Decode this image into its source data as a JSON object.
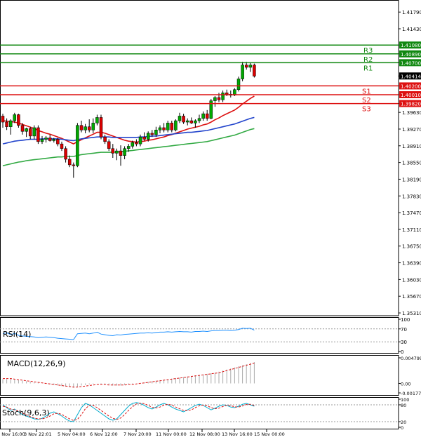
{
  "chart_data": {
    "type": "candlestick",
    "instrument_levels": {
      "resistance": [
        {
          "label": "R1",
          "value": 1.407,
          "price_tag": "1.40700"
        },
        {
          "label": "R2",
          "value": 1.4089,
          "price_tag": "1.40890"
        },
        {
          "label": "R3",
          "value": 1.4108,
          "price_tag": "1.41080"
        }
      ],
      "support": [
        {
          "label": "S1",
          "value": 1.402,
          "price_tag": "1.40200"
        },
        {
          "label": "S2",
          "value": 1.4001,
          "price_tag": "1.40010"
        },
        {
          "label": "S3",
          "value": 1.3982,
          "price_tag": "1.39820"
        }
      ],
      "current_price": {
        "value": 1.40414,
        "label": "1.40414"
      }
    },
    "price_axis": {
      "ylim": [
        1.3525,
        1.4205
      ],
      "ticks": [
        "1.41790",
        "1.41430",
        "1.41080",
        "1.40890",
        "1.40700",
        "1.40414",
        "1.40200",
        "1.40010",
        "1.39820",
        "1.39630",
        "1.39270",
        "1.38910",
        "1.38550",
        "1.38190",
        "1.37830",
        "1.37470",
        "1.37110",
        "1.36750",
        "1.36390",
        "1.36030",
        "1.35670",
        "1.35310"
      ]
    },
    "x_axis": {
      "tick_labels": [
        "1 Nov 16:00",
        "3 Nov 22:01",
        "5 Nov 04:00",
        "6 Nov 12:00",
        "7 Nov 20:00",
        "11 Nov 00:00",
        "12 Nov 08:00",
        "13 Nov 16:00",
        "15 Nov 00:00"
      ]
    },
    "candles": [
      {
        "o": 1.3955,
        "h": 1.396,
        "l": 1.393,
        "c": 1.3942
      },
      {
        "o": 1.3942,
        "h": 1.395,
        "l": 1.3925,
        "c": 1.3932
      },
      {
        "o": 1.3932,
        "h": 1.3948,
        "l": 1.3915,
        "c": 1.3945
      },
      {
        "o": 1.3945,
        "h": 1.3962,
        "l": 1.394,
        "c": 1.3958
      },
      {
        "o": 1.3958,
        "h": 1.396,
        "l": 1.393,
        "c": 1.3935
      },
      {
        "o": 1.3935,
        "h": 1.394,
        "l": 1.3915,
        "c": 1.3922
      },
      {
        "o": 1.3922,
        "h": 1.393,
        "l": 1.391,
        "c": 1.3928
      },
      {
        "o": 1.3928,
        "h": 1.3932,
        "l": 1.3905,
        "c": 1.3912
      },
      {
        "o": 1.3912,
        "h": 1.3935,
        "l": 1.3905,
        "c": 1.393
      },
      {
        "o": 1.393,
        "h": 1.3935,
        "l": 1.3895,
        "c": 1.39
      },
      {
        "o": 1.39,
        "h": 1.3912,
        "l": 1.3895,
        "c": 1.3905
      },
      {
        "o": 1.3905,
        "h": 1.3912,
        "l": 1.3898,
        "c": 1.3908
      },
      {
        "o": 1.3908,
        "h": 1.3915,
        "l": 1.39,
        "c": 1.3902
      },
      {
        "o": 1.3902,
        "h": 1.3908,
        "l": 1.3898,
        "c": 1.3905
      },
      {
        "o": 1.3905,
        "h": 1.3908,
        "l": 1.389,
        "c": 1.3895
      },
      {
        "o": 1.3895,
        "h": 1.39,
        "l": 1.388,
        "c": 1.3885
      },
      {
        "o": 1.3885,
        "h": 1.389,
        "l": 1.3855,
        "c": 1.3862
      },
      {
        "o": 1.3862,
        "h": 1.387,
        "l": 1.3845,
        "c": 1.385
      },
      {
        "o": 1.385,
        "h": 1.3855,
        "l": 1.3822,
        "c": 1.3848
      },
      {
        "o": 1.3848,
        "h": 1.394,
        "l": 1.3845,
        "c": 1.3935
      },
      {
        "o": 1.3935,
        "h": 1.3945,
        "l": 1.392,
        "c": 1.3925
      },
      {
        "o": 1.3925,
        "h": 1.3938,
        "l": 1.3918,
        "c": 1.3932
      },
      {
        "o": 1.3932,
        "h": 1.3948,
        "l": 1.392,
        "c": 1.3925
      },
      {
        "o": 1.3925,
        "h": 1.395,
        "l": 1.3918,
        "c": 1.394
      },
      {
        "o": 1.394,
        "h": 1.3958,
        "l": 1.3935,
        "c": 1.3952
      },
      {
        "o": 1.3952,
        "h": 1.3958,
        "l": 1.3905,
        "c": 1.391
      },
      {
        "o": 1.391,
        "h": 1.3915,
        "l": 1.3895,
        "c": 1.39
      },
      {
        "o": 1.39,
        "h": 1.3905,
        "l": 1.388,
        "c": 1.3885
      },
      {
        "o": 1.3885,
        "h": 1.3895,
        "l": 1.3865,
        "c": 1.3875
      },
      {
        "o": 1.3875,
        "h": 1.3885,
        "l": 1.386,
        "c": 1.388
      },
      {
        "o": 1.388,
        "h": 1.3892,
        "l": 1.3848,
        "c": 1.387
      },
      {
        "o": 1.387,
        "h": 1.389,
        "l": 1.3862,
        "c": 1.3885
      },
      {
        "o": 1.3885,
        "h": 1.3895,
        "l": 1.3878,
        "c": 1.389
      },
      {
        "o": 1.389,
        "h": 1.3902,
        "l": 1.3885,
        "c": 1.3898
      },
      {
        "o": 1.3898,
        "h": 1.3905,
        "l": 1.389,
        "c": 1.3895
      },
      {
        "o": 1.3895,
        "h": 1.3915,
        "l": 1.389,
        "c": 1.391
      },
      {
        "o": 1.391,
        "h": 1.392,
        "l": 1.3902,
        "c": 1.3905
      },
      {
        "o": 1.3905,
        "h": 1.3922,
        "l": 1.39,
        "c": 1.3918
      },
      {
        "o": 1.3918,
        "h": 1.3925,
        "l": 1.391,
        "c": 1.3915
      },
      {
        "o": 1.3915,
        "h": 1.3932,
        "l": 1.391,
        "c": 1.3925
      },
      {
        "o": 1.3925,
        "h": 1.3935,
        "l": 1.3918,
        "c": 1.393
      },
      {
        "o": 1.393,
        "h": 1.394,
        "l": 1.392,
        "c": 1.3925
      },
      {
        "o": 1.3925,
        "h": 1.3945,
        "l": 1.392,
        "c": 1.394
      },
      {
        "o": 1.394,
        "h": 1.3945,
        "l": 1.392,
        "c": 1.3925
      },
      {
        "o": 1.3925,
        "h": 1.3948,
        "l": 1.3922,
        "c": 1.3945
      },
      {
        "o": 1.3945,
        "h": 1.3962,
        "l": 1.394,
        "c": 1.3955
      },
      {
        "o": 1.3955,
        "h": 1.396,
        "l": 1.3938,
        "c": 1.3942
      },
      {
        "o": 1.3942,
        "h": 1.395,
        "l": 1.3935,
        "c": 1.3945
      },
      {
        "o": 1.3945,
        "h": 1.3952,
        "l": 1.3938,
        "c": 1.394
      },
      {
        "o": 1.394,
        "h": 1.3948,
        "l": 1.393,
        "c": 1.3945
      },
      {
        "o": 1.3945,
        "h": 1.3958,
        "l": 1.394,
        "c": 1.395
      },
      {
        "o": 1.395,
        "h": 1.3965,
        "l": 1.3945,
        "c": 1.396
      },
      {
        "o": 1.396,
        "h": 1.3968,
        "l": 1.3945,
        "c": 1.395
      },
      {
        "o": 1.395,
        "h": 1.3992,
        "l": 1.3948,
        "c": 1.3988
      },
      {
        "o": 1.3988,
        "h": 1.3998,
        "l": 1.3975,
        "c": 1.3995
      },
      {
        "o": 1.3995,
        "h": 1.4005,
        "l": 1.3985,
        "c": 1.399
      },
      {
        "o": 1.399,
        "h": 1.401,
        "l": 1.3985,
        "c": 1.4005
      },
      {
        "o": 1.4005,
        "h": 1.4012,
        "l": 1.3998,
        "c": 1.4002
      },
      {
        "o": 1.4002,
        "h": 1.401,
        "l": 1.3995,
        "c": 1.4
      },
      {
        "o": 1.4,
        "h": 1.4015,
        "l": 1.3998,
        "c": 1.4012
      },
      {
        "o": 1.4012,
        "h": 1.404,
        "l": 1.4008,
        "c": 1.4035
      },
      {
        "o": 1.4035,
        "h": 1.4072,
        "l": 1.403,
        "c": 1.4065
      },
      {
        "o": 1.4065,
        "h": 1.4072,
        "l": 1.4055,
        "c": 1.406
      },
      {
        "o": 1.406,
        "h": 1.407,
        "l": 1.405,
        "c": 1.4065
      },
      {
        "o": 1.4065,
        "h": 1.4068,
        "l": 1.4038,
        "c": 1.4041
      }
    ],
    "moving_averages": [
      {
        "name": "red",
        "color": "#dd1111",
        "values": [
          1.3945,
          1.3944,
          1.3943,
          1.3942,
          1.394,
          1.3937,
          1.3934,
          1.3931,
          1.3928,
          1.3924,
          1.3921,
          1.3918,
          1.3916,
          1.3913,
          1.391,
          1.3907,
          1.3903,
          1.3899,
          1.3895,
          1.39,
          1.3904,
          1.3908,
          1.3912,
          1.3916,
          1.392,
          1.392,
          1.3918,
          1.3915,
          1.3912,
          1.3909,
          1.3906,
          1.3903,
          1.3901,
          1.39,
          1.3899,
          1.39,
          1.3901,
          1.3903,
          1.3904,
          1.3906,
          1.3908,
          1.391,
          1.3913,
          1.3915,
          1.3918,
          1.3921,
          1.3924,
          1.3927,
          1.3929,
          1.3931,
          1.3933,
          1.3936,
          1.3938,
          1.3942,
          1.3947,
          1.3951,
          1.3956,
          1.396,
          1.3964,
          1.3968,
          1.3974,
          1.3981,
          1.3987,
          1.3993,
          1.3998
        ]
      },
      {
        "name": "blue",
        "color": "#2244cc",
        "values": [
          1.3895,
          1.3897,
          1.3899,
          1.3901,
          1.3902,
          1.3903,
          1.3904,
          1.3905,
          1.3905,
          1.3905,
          1.3906,
          1.3906,
          1.3906,
          1.3906,
          1.3906,
          1.3905,
          1.3904,
          1.3903,
          1.3902,
          1.3904,
          1.3906,
          1.3907,
          1.3908,
          1.3909,
          1.391,
          1.391,
          1.391,
          1.391,
          1.3909,
          1.3909,
          1.3909,
          1.3909,
          1.3909,
          1.3909,
          1.3909,
          1.391,
          1.391,
          1.3911,
          1.3912,
          1.3912,
          1.3913,
          1.3914,
          1.3915,
          1.3916,
          1.3917,
          1.3918,
          1.3919,
          1.392,
          1.392,
          1.3921,
          1.3922,
          1.3923,
          1.3924,
          1.3926,
          1.3928,
          1.393,
          1.3932,
          1.3934,
          1.3936,
          1.3938,
          1.3941,
          1.3944,
          1.3947,
          1.395,
          1.3952
        ]
      },
      {
        "name": "green",
        "color": "#33aa44",
        "values": [
          1.3848,
          1.385,
          1.3852,
          1.3854,
          1.3856,
          1.3857,
          1.3859,
          1.386,
          1.3861,
          1.3862,
          1.3863,
          1.3864,
          1.3865,
          1.3866,
          1.3867,
          1.3867,
          1.3868,
          1.3868,
          1.3868,
          1.387,
          1.3872,
          1.3873,
          1.3874,
          1.3875,
          1.3876,
          1.3877,
          1.3877,
          1.3877,
          1.3877,
          1.3878,
          1.3878,
          1.3879,
          1.388,
          1.3881,
          1.3882,
          1.3883,
          1.3884,
          1.3885,
          1.3886,
          1.3887,
          1.3888,
          1.3889,
          1.389,
          1.3891,
          1.3892,
          1.3893,
          1.3894,
          1.3895,
          1.3896,
          1.3897,
          1.3898,
          1.3899,
          1.39,
          1.3902,
          1.3904,
          1.3906,
          1.3908,
          1.391,
          1.3912,
          1.3914,
          1.3917,
          1.392,
          1.3923,
          1.3926,
          1.3928
        ]
      }
    ],
    "indicators": {
      "rsi": {
        "label": "RSI(14)",
        "ylim": [
          0,
          100
        ],
        "ticks": [
          "100",
          "70",
          "30",
          "0"
        ],
        "levels": [
          70,
          30
        ],
        "values": [
          55,
          58,
          52,
          56,
          50,
          48,
          47,
          46,
          45,
          43,
          44,
          45,
          44,
          43,
          41,
          40,
          39,
          38,
          37,
          55,
          56,
          57,
          55,
          57,
          60,
          54,
          52,
          50,
          49,
          52,
          51,
          53,
          54,
          55,
          56,
          57,
          57,
          58,
          57,
          59,
          60,
          60,
          61,
          60,
          61,
          62,
          61,
          61,
          60,
          62,
          62,
          63,
          62,
          64,
          65,
          65,
          66,
          66,
          65,
          66,
          68,
          72,
          71,
          72,
          66
        ]
      },
      "macd": {
        "label": "MACD(12,26,9)",
        "ticks": [
          "0.004799",
          "0.00",
          "-0.001778"
        ],
        "ylim": [
          -0.001778,
          0.004799
        ],
        "histogram": [
          0.0008,
          0.0008,
          0.0008,
          0.0007,
          0.0006,
          0.0005,
          0.0004,
          0.0003,
          0.0002,
          0.0001,
          0.0,
          -0.0001,
          -0.0002,
          -0.0003,
          -0.0004,
          -0.0005,
          -0.0006,
          -0.0007,
          -0.0008,
          -0.0006,
          -0.0004,
          -0.0003,
          -0.0002,
          -0.0001,
          0.0,
          -0.0001,
          -0.0002,
          -0.0003,
          -0.0004,
          -0.0004,
          -0.0004,
          -0.0003,
          -0.0002,
          -0.0001,
          0.0,
          0.0001,
          0.0002,
          0.0003,
          0.0004,
          0.0005,
          0.0006,
          0.0007,
          0.0008,
          0.0009,
          0.001,
          0.0011,
          0.0012,
          0.0013,
          0.0014,
          0.0015,
          0.0016,
          0.0017,
          0.0018,
          0.0019,
          0.002,
          0.0022,
          0.0024,
          0.0026,
          0.0028,
          0.003,
          0.0032,
          0.0034,
          0.0036,
          0.0038,
          0.004
        ],
        "signal": [
          0.0009,
          0.0009,
          0.0009,
          0.0008,
          0.0007,
          0.0006,
          0.0005,
          0.0004,
          0.0003,
          0.0002,
          0.0001,
          0.0,
          -0.0001,
          -0.0002,
          -0.0003,
          -0.0004,
          -0.0005,
          -0.0006,
          -0.0007,
          -0.0007,
          -0.0006,
          -0.0005,
          -0.0004,
          -0.0003,
          -0.0002,
          -0.0002,
          -0.0002,
          -0.0003,
          -0.0003,
          -0.0003,
          -0.0003,
          -0.0003,
          -0.0002,
          -0.0002,
          -0.0001,
          0.0,
          0.0001,
          0.0002,
          0.0003,
          0.0004,
          0.0005,
          0.0006,
          0.0007,
          0.0008,
          0.0009,
          0.001,
          0.0011,
          0.0012,
          0.0013,
          0.0014,
          0.0015,
          0.0016,
          0.0017,
          0.0018,
          0.0019,
          0.002,
          0.0022,
          0.0024,
          0.0026,
          0.0028,
          0.003,
          0.0032,
          0.0034,
          0.0036,
          0.0038
        ]
      },
      "stochastic": {
        "label": "Stoch(9,6,3)",
        "ylim": [
          0,
          100
        ],
        "ticks": [
          "100",
          "80",
          "20",
          "0"
        ],
        "levels": [
          80,
          20
        ],
        "k": [
          80,
          70,
          60,
          65,
          55,
          45,
          40,
          35,
          30,
          28,
          32,
          40,
          50,
          55,
          48,
          40,
          30,
          22,
          20,
          45,
          70,
          85,
          80,
          70,
          60,
          50,
          40,
          30,
          25,
          30,
          45,
          60,
          75,
          85,
          88,
          85,
          78,
          70,
          65,
          72,
          80,
          85,
          80,
          72,
          65,
          60,
          55,
          62,
          70,
          78,
          82,
          78,
          70,
          62,
          68,
          75,
          80,
          78,
          72,
          70,
          75,
          82,
          85,
          80,
          75
        ],
        "d": [
          75,
          72,
          65,
          62,
          58,
          50,
          44,
          38,
          33,
          30,
          30,
          33,
          40,
          48,
          50,
          46,
          38,
          30,
          24,
          28,
          45,
          66,
          78,
          78,
          70,
          60,
          50,
          40,
          32,
          28,
          33,
          45,
          60,
          73,
          83,
          86,
          84,
          78,
          71,
          69,
          72,
          79,
          82,
          79,
          72,
          66,
          60,
          59,
          62,
          70,
          77,
          79,
          77,
          70,
          66,
          68,
          74,
          78,
          77,
          73,
          72,
          76,
          81,
          82,
          78
        ]
      }
    }
  }
}
